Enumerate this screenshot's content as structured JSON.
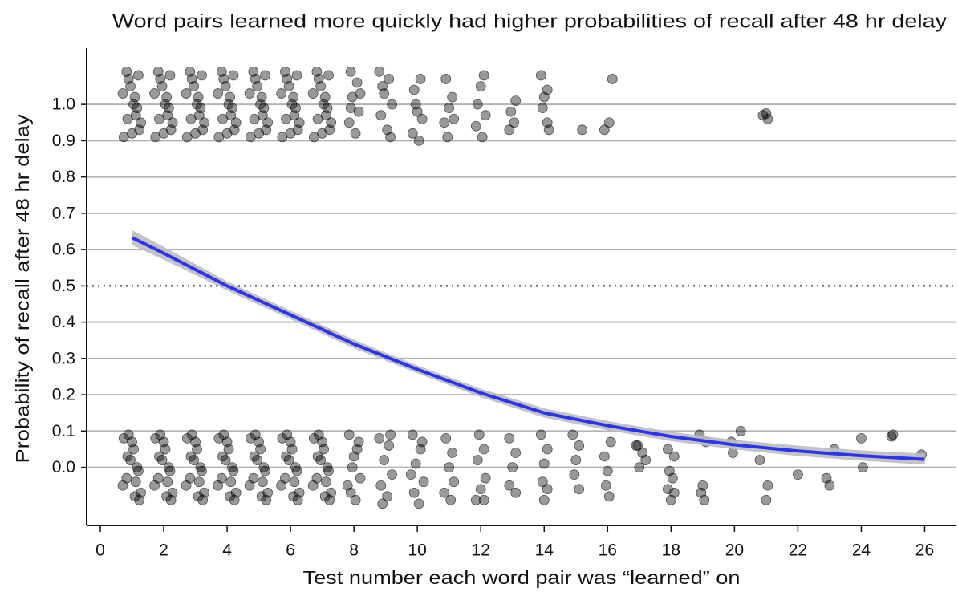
{
  "chart_data": {
    "type": "scatter",
    "title": "Word pairs learned more quickly had higher probabilities of recall after 48 hr delay",
    "x_label": "Test number each word pair was “learned” on",
    "y_label": "Probability of recall after 48 hr delay",
    "xlim": [
      -0.43,
      27.0
    ],
    "ylim": [
      -0.16,
      1.155
    ],
    "xticks": [
      0,
      2,
      4,
      6,
      8,
      10,
      12,
      14,
      16,
      18,
      20,
      22,
      24,
      26
    ],
    "yticks": [
      {
        "value": 0,
        "label": "0.0"
      },
      {
        "value": 0.1,
        "label": "0.1"
      },
      {
        "value": 0.2,
        "label": "0.2"
      },
      {
        "value": 0.3,
        "label": "0.3"
      },
      {
        "value": 0.4,
        "label": "0.4"
      },
      {
        "value": 0.5,
        "label": "0.5"
      },
      {
        "value": 0.6,
        "label": "0.6"
      },
      {
        "value": 0.7,
        "label": "0.7"
      },
      {
        "value": 0.8,
        "label": "0.8"
      },
      {
        "value": 0.9,
        "label": "0.9"
      },
      {
        "value": 1,
        "label": "1.0"
      }
    ],
    "grid": true,
    "hline": 0.5,
    "point_color": "#000000",
    "x": [
      0.74,
      1.12,
      0.95,
      1.23,
      0.83,
      1.05,
      1.28,
      0.89,
      1.16,
      0.71,
      1.0,
      1.2,
      0.86,
      1.09,
      1.23,
      0.83,
      1.05,
      1.28,
      0.89,
      1.16,
      0.71,
      1.0,
      1.2,
      0.86,
      1.09,
      0.74,
      1.12,
      0.95,
      1.74,
      2.12,
      1.95,
      2.23,
      1.83,
      2.05,
      2.28,
      1.89,
      2.16,
      1.71,
      2.0,
      2.2,
      1.86,
      2.09,
      2.23,
      1.83,
      2.05,
      2.28,
      1.89,
      2.16,
      1.71,
      2.0,
      2.2,
      1.86,
      2.09,
      1.74,
      2.12,
      1.95,
      2.74,
      3.12,
      2.95,
      3.23,
      2.83,
      3.05,
      3.28,
      2.89,
      3.16,
      2.71,
      3.0,
      3.2,
      2.86,
      3.09,
      3.23,
      2.83,
      3.05,
      3.28,
      2.89,
      3.16,
      2.71,
      3.0,
      3.2,
      2.86,
      3.09,
      2.74,
      3.12,
      2.95,
      3.74,
      4.12,
      3.95,
      4.23,
      3.83,
      4.05,
      4.28,
      3.89,
      4.16,
      3.71,
      4.0,
      4.2,
      3.86,
      4.09,
      4.23,
      3.83,
      4.05,
      4.28,
      3.89,
      4.16,
      3.71,
      4.0,
      4.2,
      3.86,
      4.09,
      3.74,
      4.12,
      3.95,
      4.74,
      5.12,
      4.95,
      5.23,
      4.83,
      5.05,
      5.28,
      4.89,
      5.16,
      4.71,
      5.0,
      5.2,
      4.86,
      5.09,
      5.23,
      4.83,
      5.05,
      5.28,
      4.89,
      5.16,
      4.71,
      5.0,
      5.2,
      4.86,
      5.09,
      4.74,
      5.12,
      4.95,
      5.74,
      6.12,
      5.95,
      6.23,
      5.83,
      6.05,
      6.28,
      5.89,
      6.16,
      5.71,
      6.0,
      6.2,
      5.86,
      6.09,
      6.23,
      5.83,
      6.05,
      6.28,
      5.89,
      6.16,
      5.71,
      6.0,
      6.2,
      5.86,
      6.09,
      5.74,
      6.12,
      5.95,
      6.74,
      7.12,
      6.95,
      7.23,
      6.83,
      7.05,
      7.28,
      6.89,
      7.16,
      6.71,
      7.0,
      7.2,
      6.86,
      7.09,
      7.23,
      6.83,
      7.05,
      7.28,
      6.89,
      7.16,
      6.71,
      7.0,
      7.2,
      6.86,
      7.09,
      6.74,
      7.12,
      6.95,
      7.9,
      8.1,
      7.95,
      8.15,
      7.85,
      8.05,
      8.2,
      7.9,
      7.85,
      8.1,
      7.95,
      8.2,
      7.9,
      8.05,
      8.15,
      7.8,
      8.0,
      8.8,
      9.1,
      8.95,
      9.2,
      8.85,
      9.05,
      9.15,
      8.9,
      8.8,
      9.1,
      8.95,
      9.2,
      8.85,
      9.05,
      9.15,
      8.9,
      9.9,
      10.1,
      9.95,
      10.15,
      9.85,
      10.05,
      10.0,
      9.85,
      10.1,
      9.95,
      10.2,
      9.9,
      10.05,
      10.15,
      9.8,
      10.9,
      11.1,
      11.0,
      11.15,
      10.85,
      10.95,
      10.9,
      11.1,
      11.0,
      11.15,
      10.85,
      11.05,
      12.1,
      12.0,
      11.9,
      12.15,
      11.85,
      12.05,
      11.95,
      12.1,
      11.9,
      12.15,
      12.0,
      11.85,
      12.1,
      13.1,
      12.95,
      13.05,
      12.9,
      12.9,
      13.1,
      13.0,
      12.9,
      13.1,
      13.9,
      14.1,
      14.0,
      13.95,
      14.1,
      14.15,
      13.9,
      14.1,
      14.0,
      13.95,
      14.1,
      14.0,
      15.2,
      14.9,
      15.1,
      15.0,
      14.95,
      15.1,
      16.15,
      16.05,
      15.9,
      16.1,
      15.9,
      16.0,
      15.95,
      16.05,
      16.9,
      17.1,
      17.2,
      17.0,
      16.95,
      17.9,
      18.1,
      17.95,
      18.05,
      17.9,
      18.1,
      18.0,
      18.9,
      19.1,
      19.0,
      18.95,
      19.05,
      19.9,
      20.2,
      19.95,
      20.9,
      21.05,
      21.0,
      20.8,
      21.05,
      21.0,
      22.0,
      23.15,
      22.9,
      23.0,
      24.0,
      24.05,
      25.0,
      24.95,
      25.9
    ],
    "values": [
      0.91,
      0.97,
      1.05,
      0.93,
      1.09,
      1.0,
      0.95,
      1.07,
      0.99,
      1.03,
      0.92,
      1.08,
      0.96,
      1.02,
      -0.09,
      -0.03,
      0.05,
      -0.07,
      0.09,
      0.0,
      -0.05,
      0.07,
      -0.01,
      0.03,
      -0.08,
      0.08,
      -0.04,
      0.02,
      0.91,
      0.97,
      1.05,
      0.93,
      1.09,
      1.0,
      0.95,
      1.07,
      0.99,
      1.03,
      0.92,
      1.08,
      0.96,
      1.02,
      -0.09,
      -0.03,
      0.05,
      -0.07,
      0.09,
      0.0,
      -0.05,
      0.07,
      -0.01,
      0.03,
      -0.08,
      0.08,
      -0.04,
      0.02,
      0.91,
      0.97,
      1.05,
      0.93,
      1.09,
      1.0,
      0.95,
      1.07,
      0.99,
      1.03,
      0.92,
      1.08,
      0.96,
      1.02,
      -0.09,
      -0.03,
      0.05,
      -0.07,
      0.09,
      0.0,
      -0.05,
      0.07,
      -0.01,
      0.03,
      -0.08,
      0.08,
      -0.04,
      0.02,
      0.91,
      0.97,
      1.05,
      0.93,
      1.09,
      1.0,
      0.95,
      1.07,
      0.99,
      1.03,
      0.92,
      1.08,
      0.96,
      1.02,
      -0.09,
      -0.03,
      0.05,
      -0.07,
      0.09,
      0.0,
      -0.05,
      0.07,
      -0.01,
      0.03,
      -0.08,
      0.08,
      -0.04,
      0.02,
      0.91,
      0.97,
      1.05,
      0.93,
      1.09,
      1.0,
      0.95,
      1.07,
      0.99,
      1.03,
      0.92,
      1.08,
      0.96,
      1.02,
      -0.09,
      -0.03,
      0.05,
      -0.07,
      0.09,
      0.0,
      -0.05,
      0.07,
      -0.01,
      0.03,
      -0.08,
      0.08,
      -0.04,
      0.02,
      0.91,
      0.97,
      1.05,
      0.93,
      1.09,
      1.0,
      0.95,
      1.07,
      0.99,
      1.03,
      0.92,
      1.08,
      0.96,
      1.02,
      -0.09,
      -0.03,
      0.05,
      -0.07,
      0.09,
      0.0,
      -0.05,
      0.07,
      -0.01,
      0.03,
      -0.08,
      0.08,
      -0.04,
      0.02,
      0.91,
      0.97,
      1.05,
      0.93,
      1.09,
      1.0,
      0.95,
      1.07,
      0.99,
      1.03,
      0.92,
      1.08,
      0.96,
      1.02,
      -0.09,
      -0.03,
      0.05,
      -0.07,
      0.09,
      0.0,
      -0.05,
      0.07,
      -0.01,
      0.03,
      -0.08,
      0.08,
      -0.04,
      0.02,
      1.09,
      1.06,
      1.02,
      0.98,
      0.95,
      0.92,
      1.03,
      0.99,
      0.09,
      0.05,
      0.0,
      -0.03,
      -0.07,
      -0.09,
      0.07,
      -0.05,
      0.03,
      1.09,
      1.07,
      1.03,
      1.0,
      0.97,
      0.93,
      0.91,
      1.05,
      0.08,
      0.06,
      0.02,
      -0.02,
      -0.05,
      -0.08,
      0.09,
      -0.1,
      1.04,
      1.07,
      1.0,
      0.96,
      0.92,
      0.9,
      0.98,
      0.09,
      0.05,
      0.01,
      -0.04,
      -0.07,
      -0.1,
      0.07,
      -0.02,
      1.07,
      1.02,
      0.99,
      0.96,
      0.95,
      0.91,
      0.08,
      0.04,
      0.0,
      -0.04,
      -0.07,
      -0.09,
      1.08,
      1.05,
      1.0,
      0.97,
      0.94,
      0.91,
      0.09,
      0.05,
      0.02,
      -0.03,
      -0.06,
      -0.09,
      -0.09,
      1.01,
      0.98,
      0.95,
      0.93,
      0.08,
      0.04,
      0.0,
      -0.05,
      -0.07,
      1.08,
      1.04,
      1.02,
      0.99,
      0.95,
      0.93,
      0.09,
      0.05,
      0.01,
      -0.04,
      -0.06,
      -0.09,
      0.93,
      0.09,
      0.06,
      0.02,
      -0.02,
      -0.06,
      1.07,
      0.95,
      0.93,
      0.07,
      0.03,
      -0.01,
      -0.05,
      -0.08,
      0.06,
      0.04,
      0.02,
      0.0,
      0.06,
      0.05,
      0.03,
      -0.01,
      -0.03,
      -0.06,
      -0.07,
      -0.09,
      0.09,
      0.07,
      -0.05,
      -0.07,
      -0.09,
      0.07,
      0.1,
      0.04,
      0.97,
      0.96,
      0.975,
      0.02,
      -0.05,
      -0.09,
      -0.02,
      0.05,
      -0.03,
      -0.05,
      0.08,
      0.0,
      0.09,
      0.085,
      0.035
    ],
    "fit": {
      "color": "#2b35f0",
      "band_color": "#bdbdbd",
      "x": [
        1,
        2,
        4,
        6,
        8,
        10,
        12,
        14,
        16,
        18,
        20,
        22,
        24,
        26
      ],
      "values": [
        0.633,
        0.59,
        0.5,
        0.42,
        0.34,
        0.27,
        0.205,
        0.15,
        0.115,
        0.085,
        0.062,
        0.045,
        0.032,
        0.022
      ],
      "lower": [
        0.613,
        0.573,
        0.488,
        0.409,
        0.329,
        0.26,
        0.194,
        0.138,
        0.103,
        0.073,
        0.05,
        0.032,
        0.019,
        0.008
      ],
      "upper": [
        0.653,
        0.607,
        0.512,
        0.431,
        0.351,
        0.28,
        0.216,
        0.162,
        0.127,
        0.097,
        0.075,
        0.059,
        0.046,
        0.037
      ]
    }
  }
}
